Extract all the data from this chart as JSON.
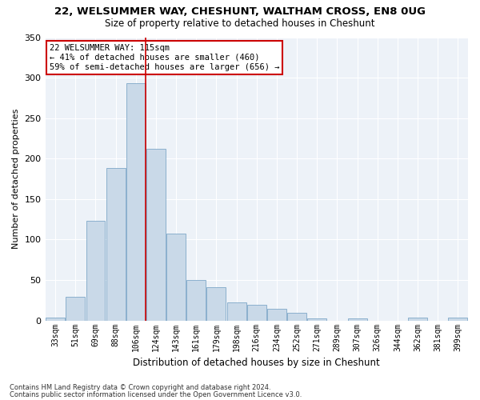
{
  "title": "22, WELSUMMER WAY, CHESHUNT, WALTHAM CROSS, EN8 0UG",
  "subtitle": "Size of property relative to detached houses in Cheshunt",
  "xlabel": "Distribution of detached houses by size in Cheshunt",
  "ylabel": "Number of detached properties",
  "bar_labels": [
    "33sqm",
    "51sqm",
    "69sqm",
    "88sqm",
    "106sqm",
    "124sqm",
    "143sqm",
    "161sqm",
    "179sqm",
    "198sqm",
    "216sqm",
    "234sqm",
    "252sqm",
    "271sqm",
    "289sqm",
    "307sqm",
    "326sqm",
    "344sqm",
    "362sqm",
    "381sqm",
    "399sqm"
  ],
  "bar_heights": [
    4,
    29,
    123,
    188,
    293,
    212,
    107,
    50,
    41,
    22,
    19,
    14,
    10,
    3,
    0,
    3,
    0,
    0,
    4,
    0,
    4
  ],
  "bar_color": "#c9d9e8",
  "bar_edge_color": "#7fa8c8",
  "vline_color": "#cc0000",
  "annotation_text": "22 WELSUMMER WAY: 115sqm\n← 41% of detached houses are smaller (460)\n59% of semi-detached houses are larger (656) →",
  "annotation_box_color": "#cc0000",
  "ylim": [
    0,
    350
  ],
  "yticks": [
    0,
    50,
    100,
    150,
    200,
    250,
    300,
    350
  ],
  "background_color": "#edf2f8",
  "footer_line1": "Contains HM Land Registry data © Crown copyright and database right 2024.",
  "footer_line2": "Contains public sector information licensed under the Open Government Licence v3.0."
}
